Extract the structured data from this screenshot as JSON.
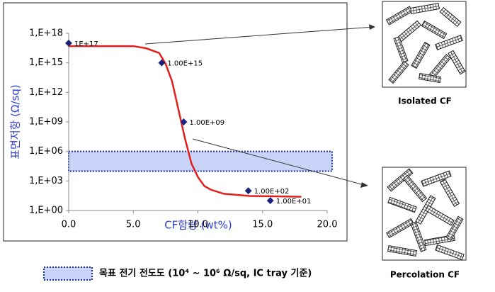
{
  "chart_data": {
    "type": "scatter",
    "ylabel": "표면저항 (Ω/sq)",
    "xlabel": "CF함량 (wt%)",
    "log_y": true,
    "xlim": [
      0,
      20
    ],
    "xticks": [
      {
        "value": 0,
        "label": "0.0"
      },
      {
        "value": 5,
        "label": "5.0"
      },
      {
        "value": 10,
        "label": "10.0"
      },
      {
        "value": 15,
        "label": "15.0"
      },
      {
        "value": 20,
        "label": "20.0"
      }
    ],
    "ylim": [
      1,
      1e+18
    ],
    "yticks": [
      {
        "value": 1,
        "label": "1,E+00"
      },
      {
        "value": 1000,
        "label": "1,E+03"
      },
      {
        "value": 1000000,
        "label": "1,E+06"
      },
      {
        "value": 1000000000,
        "label": "1,E+09"
      },
      {
        "value": 1000000000000,
        "label": "1,E+12"
      },
      {
        "value": 1000000000000000,
        "label": "1,E+15"
      },
      {
        "value": 1e+18,
        "label": "1,E+18"
      }
    ],
    "points": {
      "color": "#1a237e",
      "x": [
        0,
        7.2,
        8.9,
        13.9,
        15.6
      ],
      "values": [
        1e+17,
        1000000000000000.0,
        1000000000.0,
        100,
        10
      ],
      "value_labels": [
        "1E+17",
        "1.00E+15",
        "1.00E+09",
        "1.00E+02",
        "1.00E+01"
      ]
    },
    "fit": {
      "color": "#e0201c",
      "x": [
        0,
        5,
        6,
        7,
        7.5,
        8,
        8.5,
        9,
        9.5,
        10,
        10.5,
        11,
        12,
        14,
        18
      ],
      "values": [
        5e+16,
        5e+16,
        3e+16,
        1e+16,
        800000000000000.0,
        13000000000000.0,
        16000000000.0,
        20000000.0,
        60000.0,
        2500,
        300,
        130,
        50,
        30,
        25
      ]
    },
    "band": {
      "range": [
        10000,
        1000000
      ],
      "color": "#c9d3f7",
      "label": "목표 전기 전도도 (10⁴ ~ 10⁶ Ω/sq, IC tray 기준)"
    }
  },
  "insets": [
    {
      "label": "Isolated CF"
    },
    {
      "label": "Percolation CF"
    }
  ]
}
